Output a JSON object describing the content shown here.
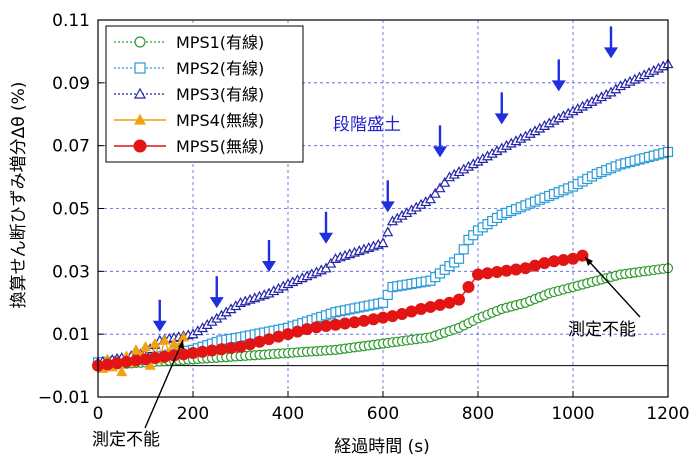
{
  "chart_data": {
    "type": "scatter",
    "ylabel": "換算せん断ひずみ増分Δθ (%)",
    "xlabel": "経過時間 (s)",
    "xlim": [
      0,
      1200
    ],
    "ylim": [
      -0.01,
      0.11
    ],
    "xticks": [
      0,
      200,
      400,
      600,
      800,
      1000,
      1200
    ],
    "yticks": [
      -0.01,
      0.01,
      0.03,
      0.05,
      0.07,
      0.09,
      0.11
    ],
    "ytick_labels": [
      "−0.01",
      "0.01",
      "0.03",
      "0.05",
      "0.07",
      "0.09",
      "0.11"
    ],
    "grid": true,
    "legend_position": "top-left",
    "series": [
      {
        "name": "MPS1(有線)",
        "color": "#2e9a2e",
        "marker": "circle-open",
        "line": "dotted",
        "points": [
          [
            0,
            0.0
          ],
          [
            100,
            0.001
          ],
          [
            200,
            0.002
          ],
          [
            300,
            0.003
          ],
          [
            400,
            0.004
          ],
          [
            500,
            0.005
          ],
          [
            600,
            0.007
          ],
          [
            700,
            0.009
          ],
          [
            760,
            0.012
          ],
          [
            800,
            0.015
          ],
          [
            850,
            0.018
          ],
          [
            900,
            0.02
          ],
          [
            950,
            0.023
          ],
          [
            1000,
            0.025
          ],
          [
            1050,
            0.027
          ],
          [
            1100,
            0.029
          ],
          [
            1150,
            0.03
          ],
          [
            1200,
            0.031
          ]
        ]
      },
      {
        "name": "MPS2(有線)",
        "color": "#2a9ad8",
        "marker": "square-open",
        "line": "dotted",
        "points": [
          [
            0,
            0.001
          ],
          [
            100,
            0.002
          ],
          [
            200,
            0.005
          ],
          [
            260,
            0.008
          ],
          [
            300,
            0.009
          ],
          [
            400,
            0.012
          ],
          [
            500,
            0.017
          ],
          [
            600,
            0.02
          ],
          [
            620,
            0.025
          ],
          [
            700,
            0.027
          ],
          [
            760,
            0.034
          ],
          [
            780,
            0.04
          ],
          [
            800,
            0.043
          ],
          [
            850,
            0.048
          ],
          [
            900,
            0.051
          ],
          [
            950,
            0.054
          ],
          [
            1000,
            0.057
          ],
          [
            1050,
            0.061
          ],
          [
            1100,
            0.064
          ],
          [
            1150,
            0.066
          ],
          [
            1200,
            0.068
          ]
        ]
      },
      {
        "name": "MPS3(有線)",
        "color": "#2323a8",
        "marker": "triangle-open",
        "line": "dotted",
        "points": [
          [
            0,
            0.001
          ],
          [
            100,
            0.004
          ],
          [
            130,
            0.008
          ],
          [
            200,
            0.01
          ],
          [
            250,
            0.015
          ],
          [
            300,
            0.02
          ],
          [
            360,
            0.023
          ],
          [
            400,
            0.026
          ],
          [
            480,
            0.031
          ],
          [
            500,
            0.034
          ],
          [
            600,
            0.039
          ],
          [
            620,
            0.046
          ],
          [
            700,
            0.053
          ],
          [
            740,
            0.06
          ],
          [
            800,
            0.065
          ],
          [
            860,
            0.07
          ],
          [
            900,
            0.073
          ],
          [
            960,
            0.078
          ],
          [
            1000,
            0.081
          ],
          [
            1080,
            0.087
          ],
          [
            1100,
            0.089
          ],
          [
            1200,
            0.096
          ]
        ]
      },
      {
        "name": "MPS4(無線)",
        "color": "#f2a20f",
        "marker": "triangle-filled",
        "line": "solid",
        "points": [
          [
            0,
            0.0
          ],
          [
            10,
            -0.001
          ],
          [
            20,
            0.002
          ],
          [
            30,
            -0.0005
          ],
          [
            40,
            0.001
          ],
          [
            50,
            -0.002
          ],
          [
            60,
            0.003
          ],
          [
            70,
            0.001
          ],
          [
            80,
            0.005
          ],
          [
            90,
            0.003
          ],
          [
            100,
            0.006
          ],
          [
            110,
            0.0
          ],
          [
            120,
            0.007
          ],
          [
            130,
            0.002
          ],
          [
            140,
            0.008
          ],
          [
            150,
            0.004
          ],
          [
            160,
            0.007
          ],
          [
            170,
            0.006
          ],
          [
            180,
            0.009
          ]
        ]
      },
      {
        "name": "MPS5(無線)",
        "color": "#e21414",
        "marker": "circle-filled",
        "line": "solid",
        "points": [
          [
            0,
            0.0
          ],
          [
            50,
            0.001
          ],
          [
            100,
            0.002
          ],
          [
            150,
            0.003
          ],
          [
            200,
            0.004
          ],
          [
            250,
            0.005
          ],
          [
            300,
            0.006
          ],
          [
            350,
            0.008
          ],
          [
            400,
            0.01
          ],
          [
            450,
            0.012
          ],
          [
            500,
            0.013
          ],
          [
            550,
            0.014
          ],
          [
            590,
            0.015
          ],
          [
            630,
            0.016
          ],
          [
            680,
            0.018
          ],
          [
            740,
            0.02
          ],
          [
            760,
            0.021
          ],
          [
            790,
            0.027
          ],
          [
            800,
            0.029
          ],
          [
            850,
            0.03
          ],
          [
            900,
            0.031
          ],
          [
            950,
            0.033
          ],
          [
            1000,
            0.034
          ],
          [
            1020,
            0.035
          ]
        ]
      }
    ],
    "annotations": [
      {
        "label": "段階盛土",
        "color": "#2020d0"
      },
      {
        "label": "測定不能",
        "color": "#000000"
      },
      {
        "label": "測定不能",
        "color": "#000000"
      }
    ],
    "step_arrows_x": [
      130,
      250,
      360,
      480,
      610,
      720,
      850,
      970,
      1080
    ],
    "step_arrows_tip_y": [
      0.0095,
      0.017,
      0.0285,
      0.0375,
      0.0475,
      0.065,
      0.0755,
      0.086,
      0.0965
    ]
  }
}
